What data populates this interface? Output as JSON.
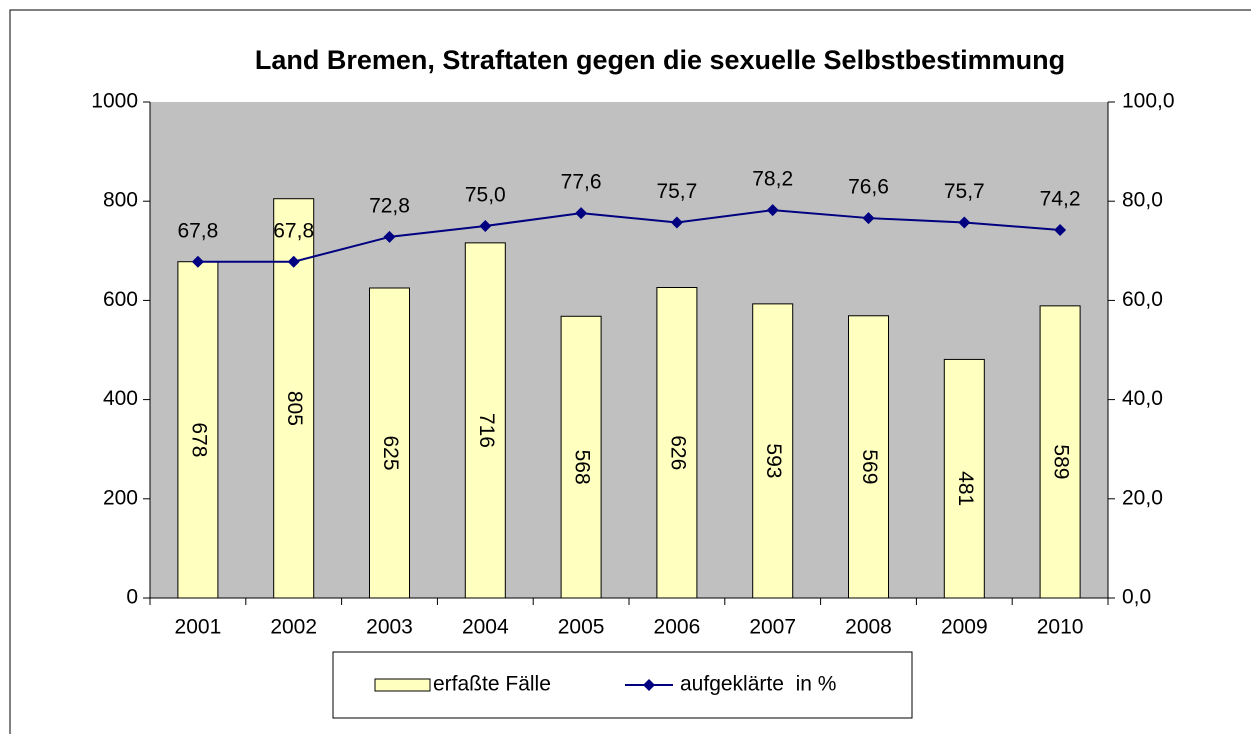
{
  "chart_data": {
    "type": "combo",
    "title": "Land Bremen, Straftaten gegen die sexuelle Selbstbestimmung",
    "categories": [
      "2001",
      "2002",
      "2003",
      "2004",
      "2005",
      "2006",
      "2007",
      "2008",
      "2009",
      "2010"
    ],
    "series": [
      {
        "name": "erfaßte Fälle",
        "type": "bar",
        "color": "#ffffc0",
        "axis": "y",
        "values": [
          678,
          805,
          625,
          716,
          568,
          626,
          593,
          569,
          481,
          589
        ]
      },
      {
        "name": "aufgeklärte  in %",
        "type": "line",
        "color": "#000080",
        "axis": "y2",
        "values": [
          67.8,
          67.8,
          72.8,
          75.0,
          77.6,
          75.7,
          78.2,
          76.6,
          75.7,
          74.2
        ],
        "value_labels": [
          "67,8",
          "67,8",
          "72,8",
          "75,0",
          "77,6",
          "75,7",
          "78,2",
          "76,6",
          "75,7",
          "74,2"
        ]
      }
    ],
    "ylim": [
      0,
      1000
    ],
    "yticks": [
      0,
      200,
      400,
      600,
      800,
      1000
    ],
    "y2lim": [
      0,
      100
    ],
    "y2ticks": [
      {
        "value": 0,
        "label": "0,0"
      },
      {
        "value": 20,
        "label": "20,0"
      },
      {
        "value": 40,
        "label": "40,0"
      },
      {
        "value": 60,
        "label": "60,0"
      },
      {
        "value": 80,
        "label": "80,0"
      },
      {
        "value": 100,
        "label": "100,0"
      }
    ],
    "legend": "bottom"
  }
}
